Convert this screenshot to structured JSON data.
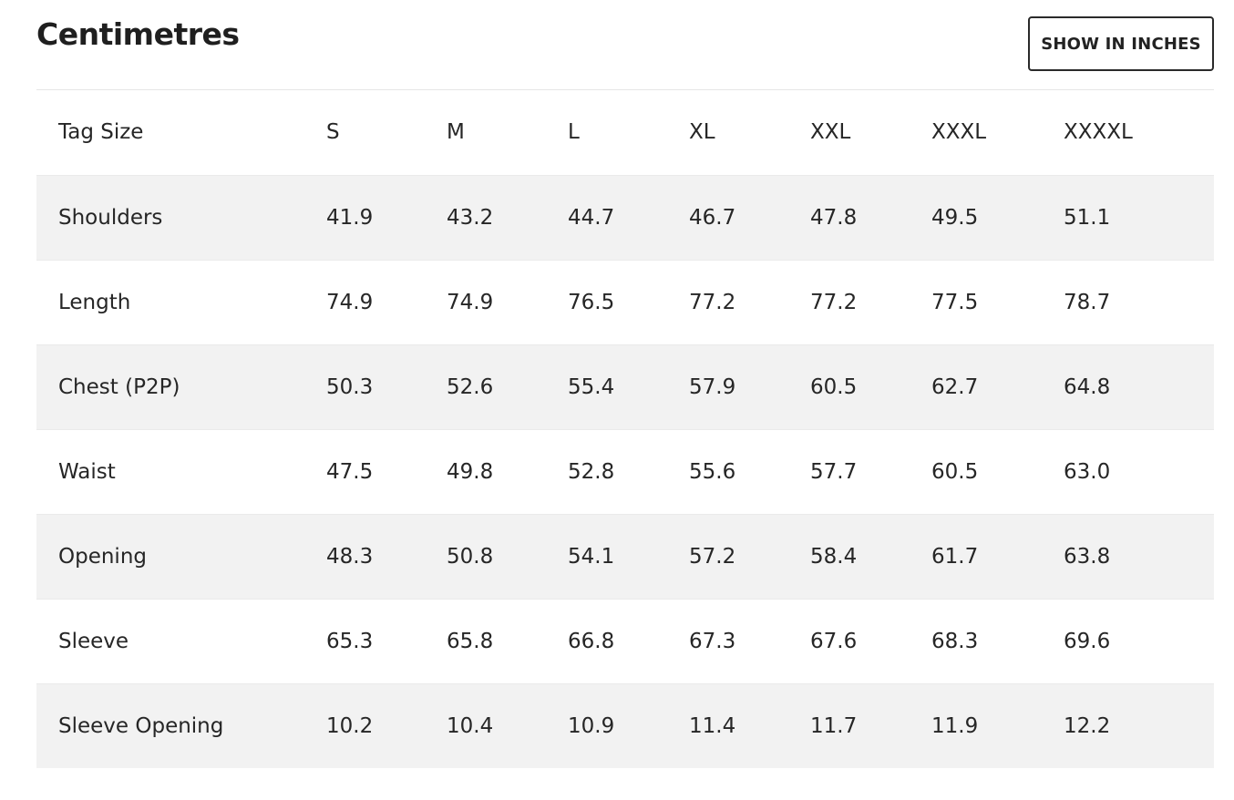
{
  "header": {
    "title": "Centimetres",
    "unit_toggle_label": "SHOW IN INCHES"
  },
  "table": {
    "columns": [
      "Tag Size",
      "S",
      "M",
      "L",
      "XL",
      "XXL",
      "XXXL",
      "XXXXL"
    ],
    "rows": [
      {
        "label": "Shoulders",
        "values": [
          "41.9",
          "43.2",
          "44.7",
          "46.7",
          "47.8",
          "49.5",
          "51.1"
        ]
      },
      {
        "label": "Length",
        "values": [
          "74.9",
          "74.9",
          "76.5",
          "77.2",
          "77.2",
          "77.5",
          "78.7"
        ]
      },
      {
        "label": "Chest (P2P)",
        "values": [
          "50.3",
          "52.6",
          "55.4",
          "57.9",
          "60.5",
          "62.7",
          "64.8"
        ]
      },
      {
        "label": "Waist",
        "values": [
          "47.5",
          "49.8",
          "52.8",
          "55.6",
          "57.7",
          "60.5",
          "63.0"
        ]
      },
      {
        "label": "Opening",
        "values": [
          "48.3",
          "50.8",
          "54.1",
          "57.2",
          "58.4",
          "61.7",
          "63.8"
        ]
      },
      {
        "label": "Sleeve",
        "values": [
          "65.3",
          "65.8",
          "66.8",
          "67.3",
          "67.6",
          "68.3",
          "69.6"
        ]
      },
      {
        "label": "Sleeve Opening",
        "values": [
          "10.2",
          "10.4",
          "10.9",
          "11.4",
          "11.7",
          "11.9",
          "12.2"
        ]
      }
    ]
  }
}
